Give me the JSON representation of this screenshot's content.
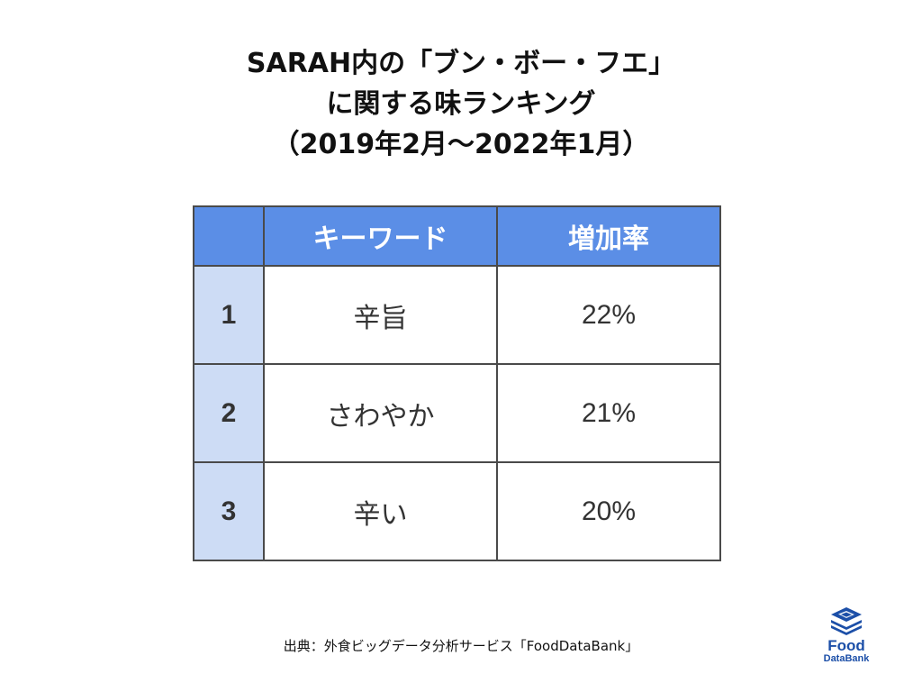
{
  "title": {
    "line1": "SARAH内の「ブン・ボー・フエ」",
    "line2": "に関する味ランキング",
    "line3": "（2019年2月〜2022年1月）"
  },
  "table": {
    "headers": [
      "",
      "キーワード",
      "増加率"
    ],
    "rows": [
      {
        "rank": "1",
        "keyword": "辛旨",
        "rate": "22%"
      },
      {
        "rank": "2",
        "keyword": "さわやか",
        "rate": "21%"
      },
      {
        "rank": "3",
        "keyword": "辛い",
        "rate": "20%"
      }
    ]
  },
  "source": "出典：外食ビッグデータ分析サービス「FoodDataBank」",
  "logo": {
    "line1": "Food",
    "line2": "DataBank",
    "color": "#1c4fa8"
  },
  "colors": {
    "header_bg": "#5b8ee6",
    "rank_bg": "#cddcf5",
    "border": "#4a4a4a"
  }
}
